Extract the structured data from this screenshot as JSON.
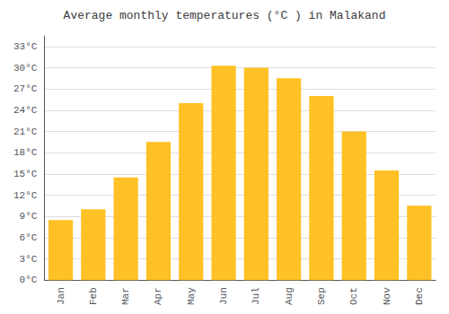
{
  "chart_data": {
    "type": "bar",
    "title": "Average monthly temperatures (°C ) in Malakand",
    "categories": [
      "Jan",
      "Feb",
      "Mar",
      "Apr",
      "May",
      "Jun",
      "Jul",
      "Aug",
      "Sep",
      "Oct",
      "Nov",
      "Dec"
    ],
    "values": [
      8.5,
      10.0,
      14.5,
      19.5,
      25.0,
      30.3,
      30.0,
      28.5,
      26.0,
      21.0,
      15.5,
      10.5
    ],
    "color": "#FFC125",
    "ylim": [
      0,
      34.5
    ],
    "yticks": [
      {
        "value": 0,
        "label": "0°C"
      },
      {
        "value": 3,
        "label": "3°C"
      },
      {
        "value": 6,
        "label": "6°C"
      },
      {
        "value": 9,
        "label": "9°C"
      },
      {
        "value": 12,
        "label": "12°C"
      },
      {
        "value": 15,
        "label": "15°C"
      },
      {
        "value": 18,
        "label": "18°C"
      },
      {
        "value": 21,
        "label": "21°C"
      },
      {
        "value": 24,
        "label": "24°C"
      },
      {
        "value": 27,
        "label": "27°C"
      },
      {
        "value": 30,
        "label": "30°C"
      },
      {
        "value": 33,
        "label": "33°C"
      }
    ],
    "grid": true
  }
}
